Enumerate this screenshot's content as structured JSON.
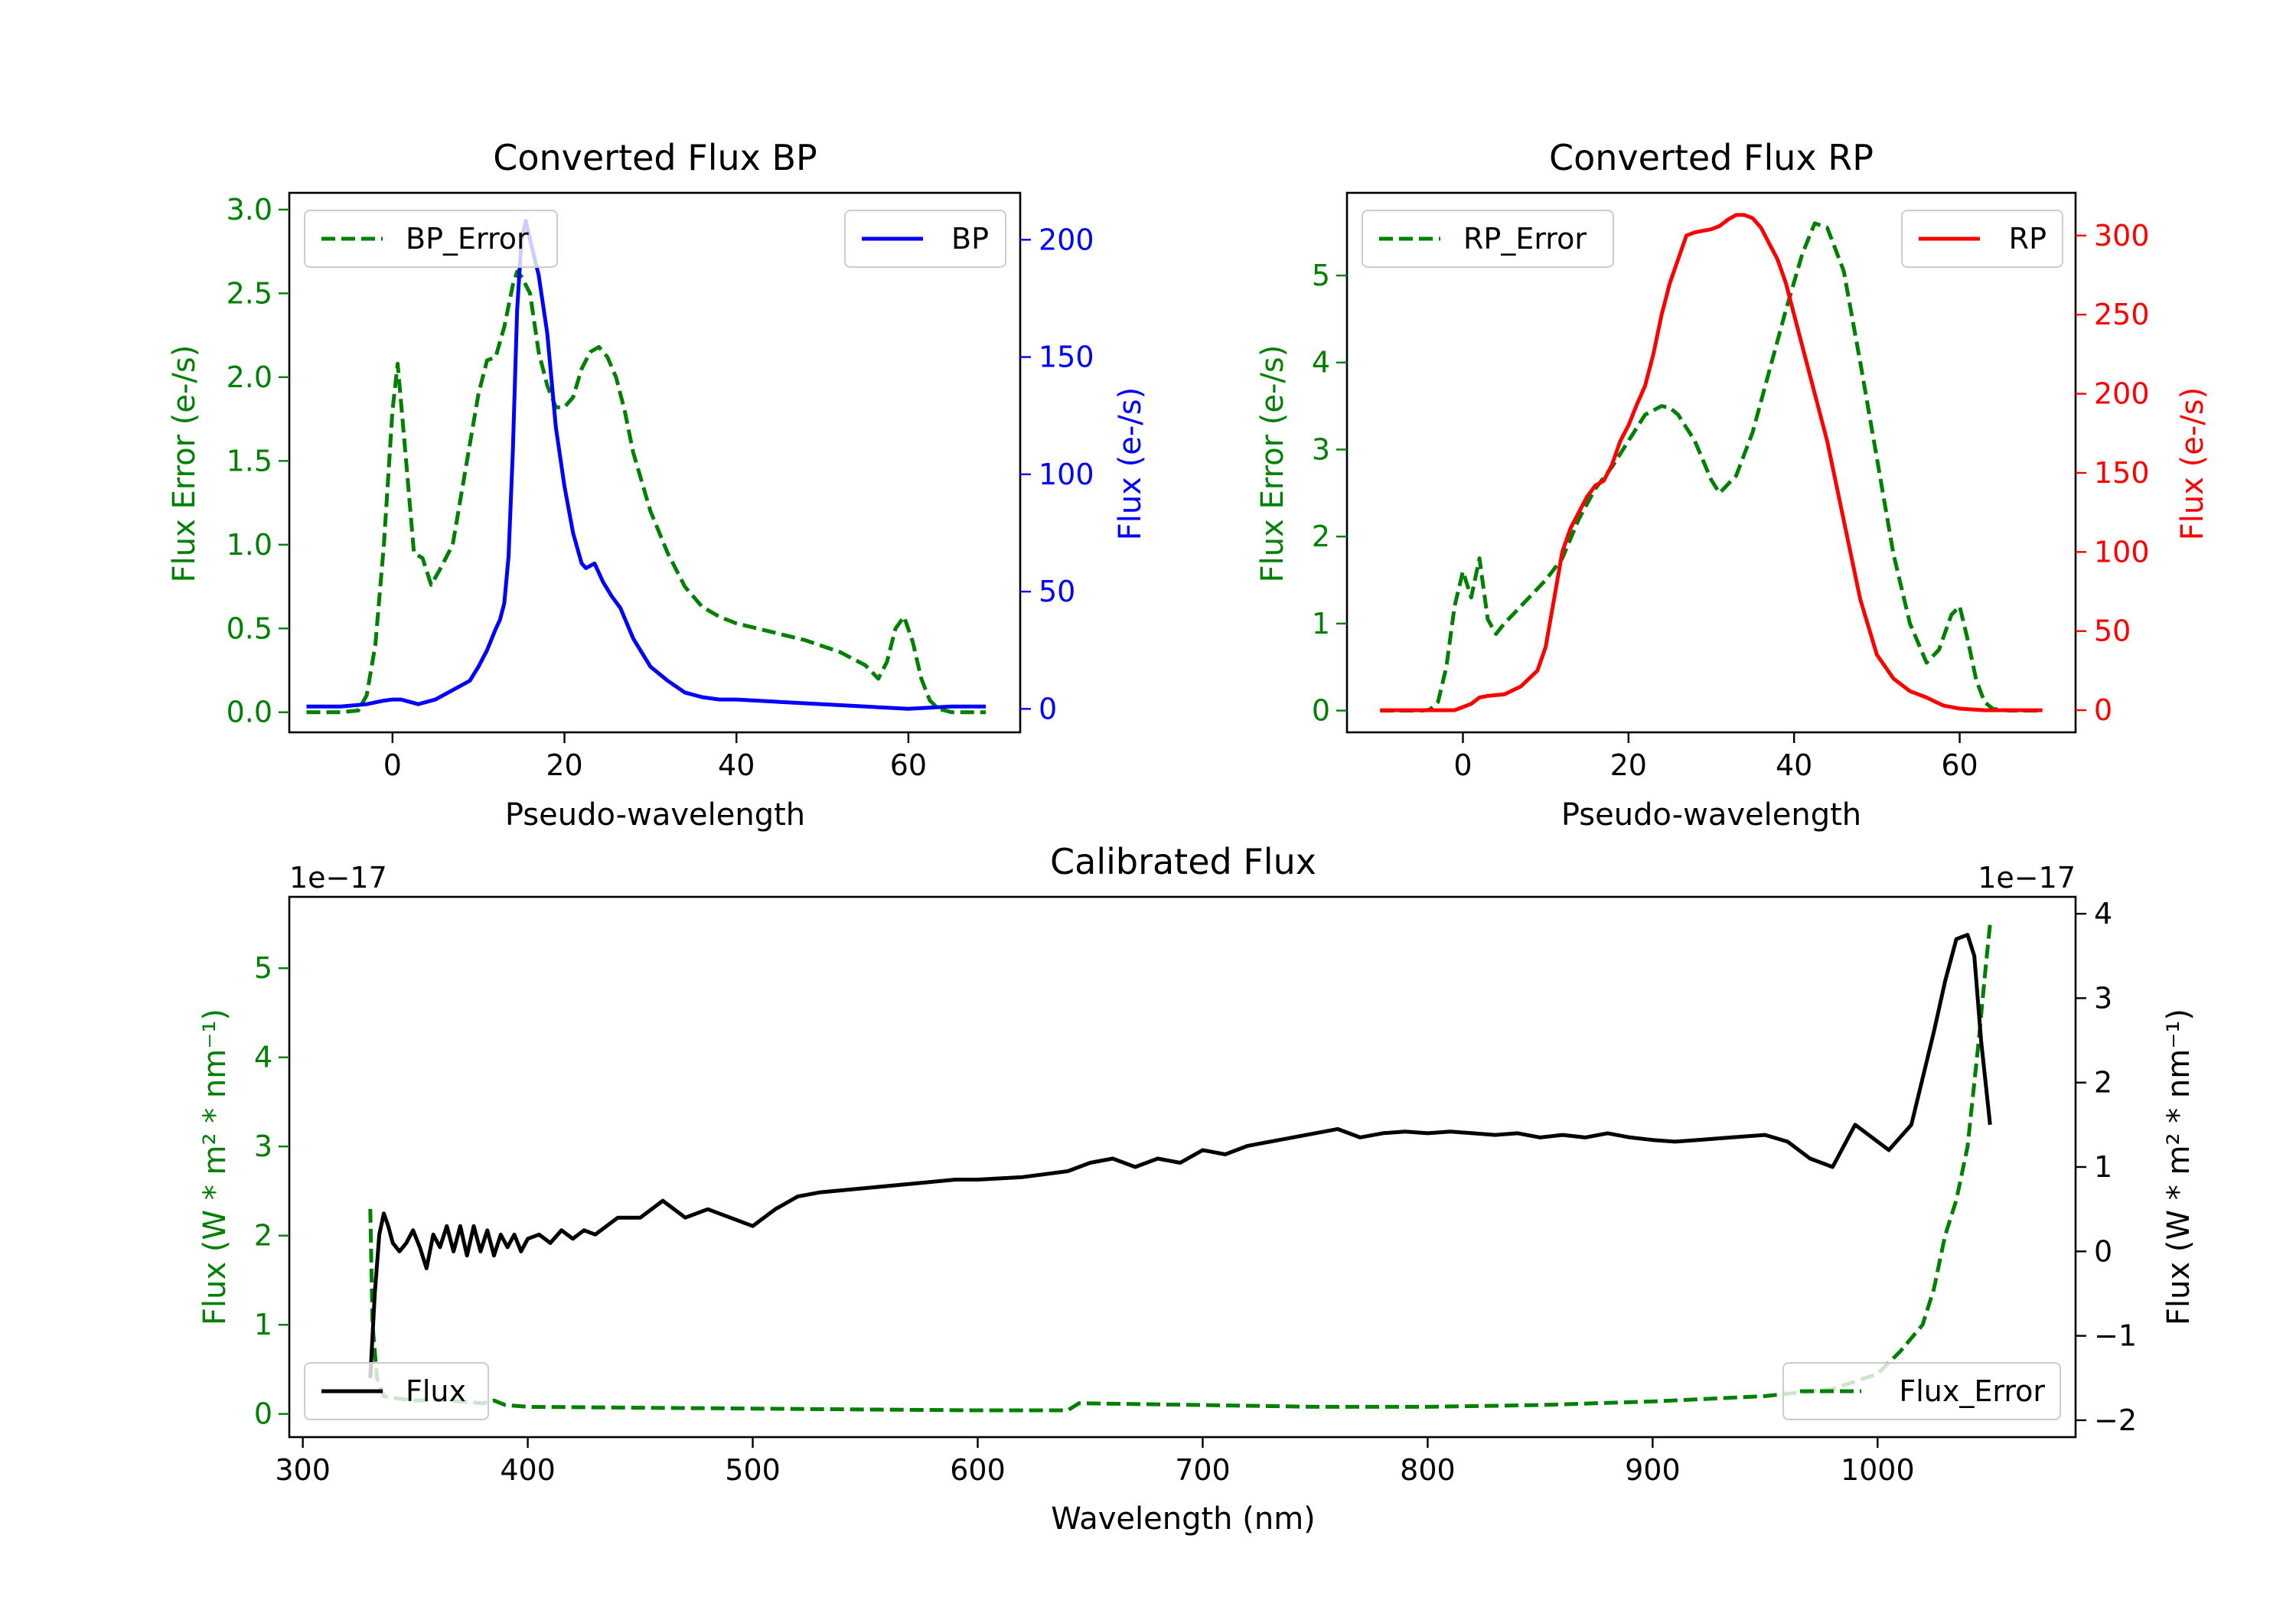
{
  "figure": {
    "colors": {
      "error": "#008000",
      "bp": "#0000ff",
      "rp": "#ff0000",
      "flux": "#000000",
      "axis": "#000000"
    }
  },
  "chart_data": [
    {
      "id": "bp",
      "type": "line",
      "title": "Converted Flux BP",
      "xlabel": "Pseudo-wavelength",
      "ylabel_left": "Flux Error (e-/s)",
      "ylabel_right": "Flux (e-/s)",
      "xlim": [
        -12,
        73
      ],
      "ylim_left": [
        -0.12,
        3.1
      ],
      "ylim_right": [
        -10,
        220
      ],
      "xticks": [
        0,
        20,
        40,
        60
      ],
      "xtick_labels": [
        "0",
        "20",
        "40",
        "60"
      ],
      "yticks_left": [
        0.0,
        0.5,
        1.0,
        1.5,
        2.0,
        2.5,
        3.0
      ],
      "ytick_labels_left": [
        "0.0",
        "0.5",
        "1.0",
        "1.5",
        "2.0",
        "2.5",
        "3.0"
      ],
      "yticks_right": [
        0,
        50,
        100,
        150,
        200
      ],
      "ytick_labels_right": [
        "0",
        "50",
        "100",
        "150",
        "200"
      ],
      "legend_left": {
        "label": "BP_Error",
        "position": "upper-left"
      },
      "legend_right": {
        "label": "BP",
        "position": "upper-right"
      },
      "series": [
        {
          "name": "BP_Error",
          "axis": "left",
          "color": "#008000",
          "style": "dashed",
          "x": [
            -10,
            -8,
            -6,
            -4,
            -3,
            -2,
            -1,
            0,
            0.6,
            1.5,
            2.5,
            3.5,
            4.5,
            5.5,
            7,
            8,
            9,
            10,
            11,
            12,
            13,
            14,
            14.5,
            15,
            16,
            17,
            18,
            19,
            20,
            21,
            22,
            23,
            24,
            25,
            26,
            27,
            28,
            30,
            32,
            34,
            36,
            38,
            40,
            44,
            48,
            52,
            55,
            56.5,
            57.5,
            58.5,
            59.5,
            60.5,
            61.5,
            62.5,
            63.5,
            65,
            67,
            69
          ],
          "y": [
            0.0,
            0.0,
            0.0,
            0.01,
            0.1,
            0.4,
            1.0,
            1.8,
            2.08,
            1.55,
            0.95,
            0.92,
            0.76,
            0.85,
            1.0,
            1.3,
            1.6,
            1.9,
            2.1,
            2.12,
            2.3,
            2.55,
            2.63,
            2.6,
            2.5,
            2.15,
            1.95,
            1.82,
            1.82,
            1.88,
            2.05,
            2.15,
            2.18,
            2.12,
            2.0,
            1.8,
            1.55,
            1.2,
            0.95,
            0.75,
            0.63,
            0.57,
            0.53,
            0.48,
            0.43,
            0.36,
            0.28,
            0.2,
            0.3,
            0.5,
            0.57,
            0.42,
            0.2,
            0.07,
            0.02,
            0.0,
            0.0,
            0.0
          ]
        },
        {
          "name": "BP",
          "axis": "right",
          "color": "#0000ff",
          "style": "solid",
          "x": [
            -10,
            -6,
            -3,
            -1,
            0,
            1,
            2,
            3,
            5,
            7,
            9,
            10,
            11,
            12,
            12.5,
            13,
            13.5,
            14,
            14.5,
            15,
            15.5,
            16,
            17,
            18,
            19,
            20,
            21,
            22,
            22.5,
            23.5,
            24.5,
            25.5,
            26.5,
            28,
            30,
            32,
            34,
            36,
            38,
            40,
            45,
            50,
            55,
            60,
            65,
            69
          ],
          "y": [
            1,
            1,
            2,
            3.5,
            4,
            4,
            3,
            2,
            4,
            8,
            12,
            18,
            25,
            34,
            38,
            45,
            65,
            110,
            170,
            200,
            208,
            200,
            185,
            160,
            120,
            95,
            75,
            62,
            60,
            62,
            54,
            48,
            43,
            30,
            18,
            12,
            7,
            5,
            4,
            4,
            3,
            2,
            1,
            0,
            1,
            1
          ]
        }
      ]
    },
    {
      "id": "rp",
      "type": "line",
      "title": "Converted Flux RP",
      "xlabel": "Pseudo-wavelength",
      "ylabel_left": "Flux Error (e-/s)",
      "ylabel_right": "Flux (e-/s)",
      "xlim": [
        -14,
        74
      ],
      "ylim_left": [
        -0.25,
        5.95
      ],
      "ylim_right": [
        -14,
        327
      ],
      "xticks": [
        0,
        20,
        40,
        60
      ],
      "xtick_labels": [
        "0",
        "20",
        "40",
        "60"
      ],
      "yticks_left": [
        0,
        1,
        2,
        3,
        4,
        5
      ],
      "ytick_labels_left": [
        "0",
        "1",
        "2",
        "3",
        "4",
        "5"
      ],
      "yticks_right": [
        0,
        50,
        100,
        150,
        200,
        250,
        300
      ],
      "ytick_labels_right": [
        "0",
        "50",
        "100",
        "150",
        "200",
        "250",
        "300"
      ],
      "legend_left": {
        "label": "RP_Error",
        "position": "upper-left"
      },
      "legend_right": {
        "label": "RP",
        "position": "upper-right"
      },
      "series": [
        {
          "name": "RP_Error",
          "axis": "right_hidden",
          "color": "#008000",
          "style": "dashed",
          "x": [
            -10,
            -5,
            -4,
            -3,
            -2,
            -1,
            0,
            1,
            2,
            3,
            4,
            5,
            6,
            8,
            10,
            12,
            14,
            16,
            18,
            20,
            22,
            24,
            25,
            26,
            28,
            30,
            31,
            33,
            35,
            37,
            39,
            41,
            42.5,
            44,
            46,
            48,
            50,
            52,
            54,
            56,
            57.5,
            59,
            60,
            61,
            62,
            63,
            64,
            66,
            68,
            70
          ],
          "y": [
            0,
            0,
            0.01,
            0.1,
            0.5,
            1.2,
            1.6,
            1.3,
            1.75,
            1.05,
            0.88,
            1.0,
            1.1,
            1.3,
            1.5,
            1.75,
            2.2,
            2.55,
            2.8,
            3.1,
            3.4,
            3.5,
            3.48,
            3.4,
            3.1,
            2.65,
            2.5,
            2.7,
            3.2,
            3.9,
            4.6,
            5.25,
            5.6,
            5.55,
            5.05,
            4.0,
            2.9,
            1.8,
            1.0,
            0.55,
            0.7,
            1.1,
            1.2,
            0.8,
            0.35,
            0.1,
            0.02,
            0,
            0,
            0
          ]
        },
        {
          "name": "RP",
          "axis": "right",
          "color": "#ff0000",
          "style": "solid",
          "x": [
            -10,
            -5,
            -3,
            -1,
            1,
            2,
            3,
            5,
            7,
            9,
            10,
            11,
            12,
            13,
            14,
            15,
            16,
            17,
            18,
            19,
            20,
            21,
            22,
            23,
            24,
            25,
            26,
            27,
            28,
            29,
            30,
            31,
            32,
            33,
            34,
            35,
            36,
            37,
            38,
            39,
            40,
            42,
            44,
            46,
            48,
            50,
            52,
            54,
            56,
            58,
            60,
            63,
            66,
            70
          ],
          "y": [
            0,
            0,
            0,
            0,
            4,
            8,
            9,
            10,
            15,
            25,
            40,
            70,
            100,
            115,
            125,
            135,
            142,
            145,
            155,
            170,
            180,
            193,
            205,
            225,
            250,
            270,
            285,
            300,
            302,
            303,
            304,
            306,
            310,
            313,
            313,
            311,
            305,
            295,
            285,
            270,
            250,
            210,
            170,
            120,
            70,
            35,
            20,
            12,
            8,
            3,
            1,
            0,
            0,
            0
          ]
        }
      ]
    },
    {
      "id": "calibrated",
      "type": "line",
      "title": "Calibrated Flux",
      "xlabel": "Wavelength (nm)",
      "ylabel_left": "Flux (W * m² * nm⁻¹)",
      "ylabel_right": "Flux (W * m² * nm⁻¹)",
      "offset_left": "1e−17",
      "offset_right": "1e−17",
      "xlim": [
        294,
        1088
      ],
      "ylim_left": [
        -0.26,
        5.8
      ],
      "ylim_right": [
        -2.2,
        4.2
      ],
      "xticks": [
        300,
        400,
        500,
        600,
        700,
        800,
        900,
        1000
      ],
      "xtick_labels": [
        "300",
        "400",
        "500",
        "600",
        "700",
        "800",
        "900",
        "1000"
      ],
      "yticks_left": [
        0,
        1,
        2,
        3,
        4,
        5
      ],
      "ytick_labels_left": [
        "0",
        "1",
        "2",
        "3",
        "4",
        "5"
      ],
      "yticks_right": [
        -2,
        -1,
        0,
        1,
        2,
        3,
        4
      ],
      "ytick_labels_right": [
        "−2",
        "−1",
        "0",
        "1",
        "2",
        "3",
        "4"
      ],
      "legend_left": {
        "label": "Flux",
        "position": "lower-left"
      },
      "legend_right": {
        "label": "Flux_Error",
        "position": "lower-right"
      },
      "series": [
        {
          "name": "Flux_Error",
          "axis": "left",
          "color": "#008000",
          "style": "dashed",
          "x": [
            330,
            331,
            333,
            336,
            340,
            350,
            360,
            370,
            380,
            385,
            390,
            400,
            450,
            500,
            550,
            600,
            640,
            645,
            700,
            750,
            800,
            850,
            900,
            950,
            980,
            1000,
            1010,
            1020,
            1025,
            1030,
            1035,
            1040,
            1045,
            1048,
            1050
          ],
          "y": [
            2.3,
            1.0,
            0.4,
            0.2,
            0.18,
            0.15,
            0.16,
            0.14,
            0.12,
            0.15,
            0.1,
            0.08,
            0.07,
            0.06,
            0.05,
            0.04,
            0.04,
            0.12,
            0.1,
            0.08,
            0.08,
            0.1,
            0.14,
            0.2,
            0.28,
            0.45,
            0.7,
            1.0,
            1.4,
            2.0,
            2.4,
            3.0,
            4.2,
            5.0,
            5.5
          ]
        },
        {
          "name": "Flux",
          "axis": "right",
          "color": "#000000",
          "style": "solid",
          "x": [
            330,
            332,
            334,
            336,
            338,
            340,
            343,
            346,
            349,
            352,
            355,
            358,
            361,
            364,
            367,
            370,
            373,
            376,
            379,
            382,
            385,
            388,
            391,
            394,
            397,
            400,
            405,
            410,
            415,
            420,
            425,
            430,
            440,
            450,
            460,
            470,
            480,
            490,
            500,
            510,
            520,
            530,
            550,
            570,
            590,
            600,
            620,
            640,
            650,
            660,
            670,
            680,
            690,
            700,
            710,
            720,
            730,
            740,
            750,
            760,
            770,
            780,
            790,
            800,
            810,
            820,
            830,
            840,
            850,
            860,
            870,
            880,
            890,
            900,
            910,
            920,
            935,
            950,
            960,
            970,
            980,
            990,
            1000,
            1005,
            1015,
            1025,
            1030,
            1035,
            1040,
            1043,
            1046,
            1050
          ],
          "y": [
            -1.5,
            -0.5,
            0.2,
            0.45,
            0.3,
            0.1,
            0.0,
            0.1,
            0.25,
            0.05,
            -0.2,
            0.2,
            0.05,
            0.3,
            0.0,
            0.3,
            -0.05,
            0.3,
            0.0,
            0.25,
            -0.05,
            0.2,
            0.05,
            0.2,
            0.0,
            0.15,
            0.2,
            0.1,
            0.25,
            0.15,
            0.25,
            0.2,
            0.4,
            0.4,
            0.6,
            0.4,
            0.5,
            0.4,
            0.3,
            0.5,
            0.65,
            0.7,
            0.75,
            0.8,
            0.85,
            0.85,
            0.88,
            0.95,
            1.05,
            1.1,
            1.0,
            1.1,
            1.05,
            1.2,
            1.15,
            1.25,
            1.3,
            1.35,
            1.4,
            1.45,
            1.35,
            1.4,
            1.42,
            1.4,
            1.42,
            1.4,
            1.38,
            1.4,
            1.35,
            1.38,
            1.35,
            1.4,
            1.35,
            1.32,
            1.3,
            1.32,
            1.35,
            1.38,
            1.3,
            1.1,
            1.0,
            1.5,
            1.3,
            1.2,
            1.5,
            2.6,
            3.2,
            3.7,
            3.75,
            3.5,
            2.5,
            1.5
          ]
        }
      ]
    }
  ]
}
